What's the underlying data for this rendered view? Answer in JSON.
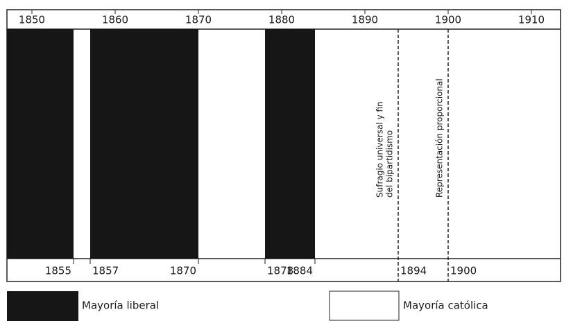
{
  "chart_data": {
    "type": "timeline",
    "xlim": [
      1847,
      1913.5
    ],
    "xticks": [
      1850,
      1860,
      1870,
      1880,
      1890,
      1900,
      1910
    ],
    "series": [
      {
        "name": "Mayoría liberal",
        "color": "#161616",
        "periods": [
          [
            1847,
            1855
          ],
          [
            1857,
            1870
          ],
          [
            1878,
            1884
          ]
        ]
      },
      {
        "name": "Mayoría católica",
        "color": "#ffffff"
      }
    ],
    "events": [
      {
        "year": 1894,
        "label": [
          "Sufragio universal y fin",
          "del bipartidismo"
        ]
      },
      {
        "year": 1900,
        "label": [
          "Representación proporcional"
        ]
      }
    ]
  }
}
